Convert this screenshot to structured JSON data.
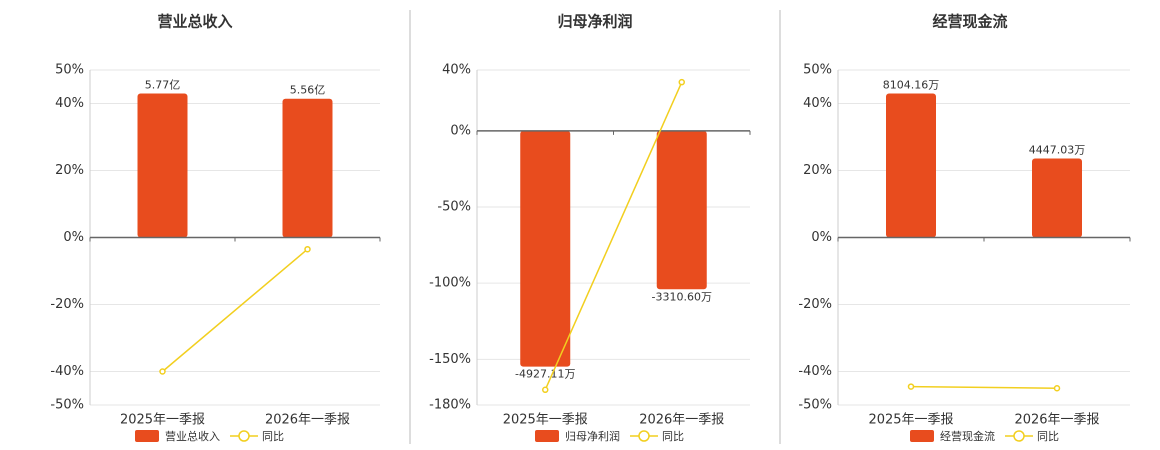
{
  "chart_data": [
    {
      "type": "bar",
      "title": "营业总收入",
      "categories": [
        "2025年一季报",
        "2026年一季报"
      ],
      "series": [
        {
          "name": "营业总收入",
          "type": "bar",
          "color": "#e84c1e",
          "values": [
            5.77,
            5.56
          ],
          "value_labels": [
            "5.77亿",
            "5.56亿"
          ]
        },
        {
          "name": "同比",
          "type": "line",
          "color": "#f2cf1f",
          "values": [
            -40,
            -3.5
          ]
        }
      ],
      "ylim": [
        -50,
        50
      ],
      "yticks": [
        {
          "value": 50,
          "label": "50%"
        },
        {
          "value": 40,
          "label": "40%"
        },
        {
          "value": 20,
          "label": "20%"
        },
        {
          "value": 0,
          "label": "0%"
        },
        {
          "value": -20,
          "label": "-20%"
        },
        {
          "value": -40,
          "label": "-40%"
        },
        {
          "value": -50,
          "label": "-50%"
        }
      ],
      "grid": true
    },
    {
      "type": "bar",
      "title": "归母净利润",
      "categories": [
        "2025年一季报",
        "2026年一季报"
      ],
      "series": [
        {
          "name": "归母净利润",
          "type": "bar",
          "color": "#e84c1e",
          "values": [
            -4927.11,
            -3310.6
          ],
          "value_labels": [
            "-4927.11万",
            "-3310.60万"
          ]
        },
        {
          "name": "同比",
          "type": "line",
          "color": "#f2cf1f",
          "values": [
            -170,
            32
          ]
        }
      ],
      "ylim": [
        -180,
        40
      ],
      "yticks": [
        {
          "value": 40,
          "label": "40%"
        },
        {
          "value": 0,
          "label": "0%"
        },
        {
          "value": -50,
          "label": "-50%"
        },
        {
          "value": -100,
          "label": "-100%"
        },
        {
          "value": -150,
          "label": "-150%"
        },
        {
          "value": -180,
          "label": "-180%"
        }
      ],
      "grid": true
    },
    {
      "type": "bar",
      "title": "经营现金流",
      "categories": [
        "2025年一季报",
        "2026年一季报"
      ],
      "series": [
        {
          "name": "经营现金流",
          "type": "bar",
          "color": "#e84c1e",
          "values": [
            8104.16,
            4447.03
          ],
          "value_labels": [
            "8104.16万",
            "4447.03万"
          ]
        },
        {
          "name": "同比",
          "type": "line",
          "color": "#f2cf1f",
          "values": [
            -44.5,
            -45
          ]
        }
      ],
      "ylim": [
        -50,
        50
      ],
      "yticks": [
        {
          "value": 50,
          "label": "50%"
        },
        {
          "value": 40,
          "label": "40%"
        },
        {
          "value": 20,
          "label": "20%"
        },
        {
          "value": 0,
          "label": "0%"
        },
        {
          "value": -20,
          "label": "-20%"
        },
        {
          "value": -40,
          "label": "-40%"
        },
        {
          "value": -50,
          "label": "-50%"
        }
      ],
      "grid": true
    }
  ]
}
